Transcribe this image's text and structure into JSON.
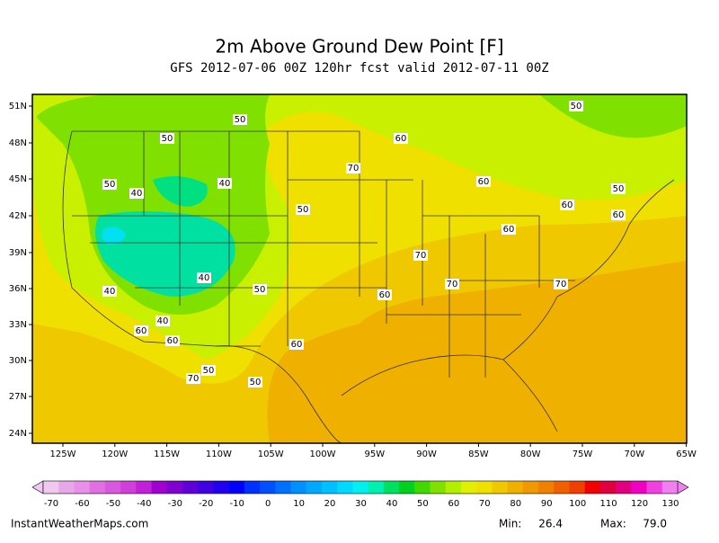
{
  "header": {
    "title": "2m Above Ground Dew Point [F]",
    "subtitle": "GFS 2012-07-06 00Z 120hr fcst valid 2012-07-11 00Z"
  },
  "map": {
    "lat_labels": [
      "51N",
      "48N",
      "45N",
      "42N",
      "39N",
      "36N",
      "33N",
      "30N",
      "27N",
      "24N"
    ],
    "lon_labels": [
      "125W",
      "120W",
      "115W",
      "110W",
      "105W",
      "100W",
      "95W",
      "90W",
      "85W",
      "80W",
      "75W",
      "70W",
      "65W"
    ],
    "contour_labels": [
      "50",
      "50",
      "60",
      "70",
      "50",
      "40",
      "40",
      "60",
      "50",
      "50",
      "60",
      "60",
      "60",
      "70",
      "40",
      "40",
      "50",
      "60",
      "70",
      "70",
      "40",
      "60",
      "60",
      "60",
      "50",
      "70",
      "50",
      "50"
    ]
  },
  "colorbar": {
    "labels": [
      "-70",
      "-60",
      "-50",
      "-40",
      "-30",
      "-20",
      "-10",
      "0",
      "10",
      "20",
      "30",
      "40",
      "50",
      "60",
      "70",
      "80",
      "90",
      "100",
      "110",
      "120",
      "130"
    ],
    "colors": [
      "#f0c8f0",
      "#e8a8e8",
      "#e890e8",
      "#e070e0",
      "#d858e0",
      "#d040d8",
      "#c020d8",
      "#a000d0",
      "#8000d0",
      "#6000d8",
      "#4000e0",
      "#2000f0",
      "#0000ff",
      "#0030ff",
      "#0050ff",
      "#0070ff",
      "#0090ff",
      "#00a8ff",
      "#00c0ff",
      "#00d8ff",
      "#00f0f0",
      "#00f0b0",
      "#00e060",
      "#00d020",
      "#40d800",
      "#80e000",
      "#b0f000",
      "#e0f000",
      "#f0e000",
      "#f0c800",
      "#f0b000",
      "#f09800",
      "#f08000",
      "#f06000",
      "#f04000",
      "#f00000",
      "#e00040",
      "#e00080",
      "#f000c0",
      "#f040e0",
      "#f080f0"
    ]
  },
  "footer": {
    "site": "InstantWeatherMaps.com",
    "min_label": "Min:",
    "min": "26.4",
    "max_label": "Max:",
    "max": "79.0"
  }
}
